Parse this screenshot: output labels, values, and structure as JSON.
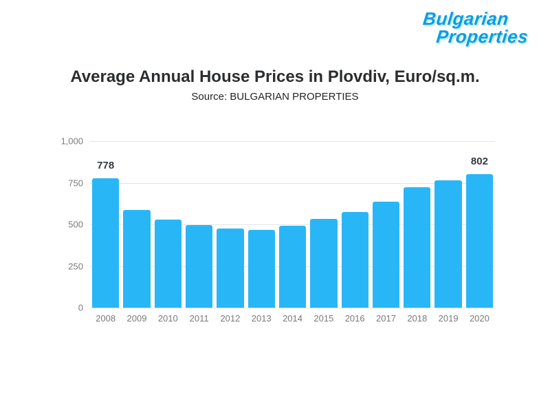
{
  "logo": {
    "line1": "Bulgarian",
    "line2": "Properties"
  },
  "title": "Average Annual House Prices in Plovdiv, Euro/sq.m.",
  "subtitle": "Source: BULGARIAN PROPERTIES",
  "chart_data": {
    "type": "bar",
    "title": "Average Annual House Prices in Plovdiv, Euro/sq.m.",
    "subtitle": "Source: BULGARIAN PROPERTIES",
    "categories": [
      "2008",
      "2009",
      "2010",
      "2011",
      "2012",
      "2013",
      "2014",
      "2015",
      "2016",
      "2017",
      "2018",
      "2019",
      "2020"
    ],
    "values": [
      778,
      585,
      528,
      497,
      474,
      468,
      493,
      532,
      576,
      638,
      722,
      766,
      802
    ],
    "value_labels": [
      "778",
      "",
      "",
      "",
      "",
      "",
      "",
      "",
      "",
      "",
      "",
      "",
      "802"
    ],
    "xlabel": "",
    "ylabel": "",
    "ylim": [
      0,
      1000
    ],
    "yticks": [
      "1,000",
      "750",
      "500",
      "250",
      "0"
    ],
    "grid": true,
    "legend": false,
    "bar_color": "#29b6f6",
    "grid_color": "#e4e4e4",
    "tick_color": "#7a7a7a",
    "label_color": "#2f3a42"
  }
}
